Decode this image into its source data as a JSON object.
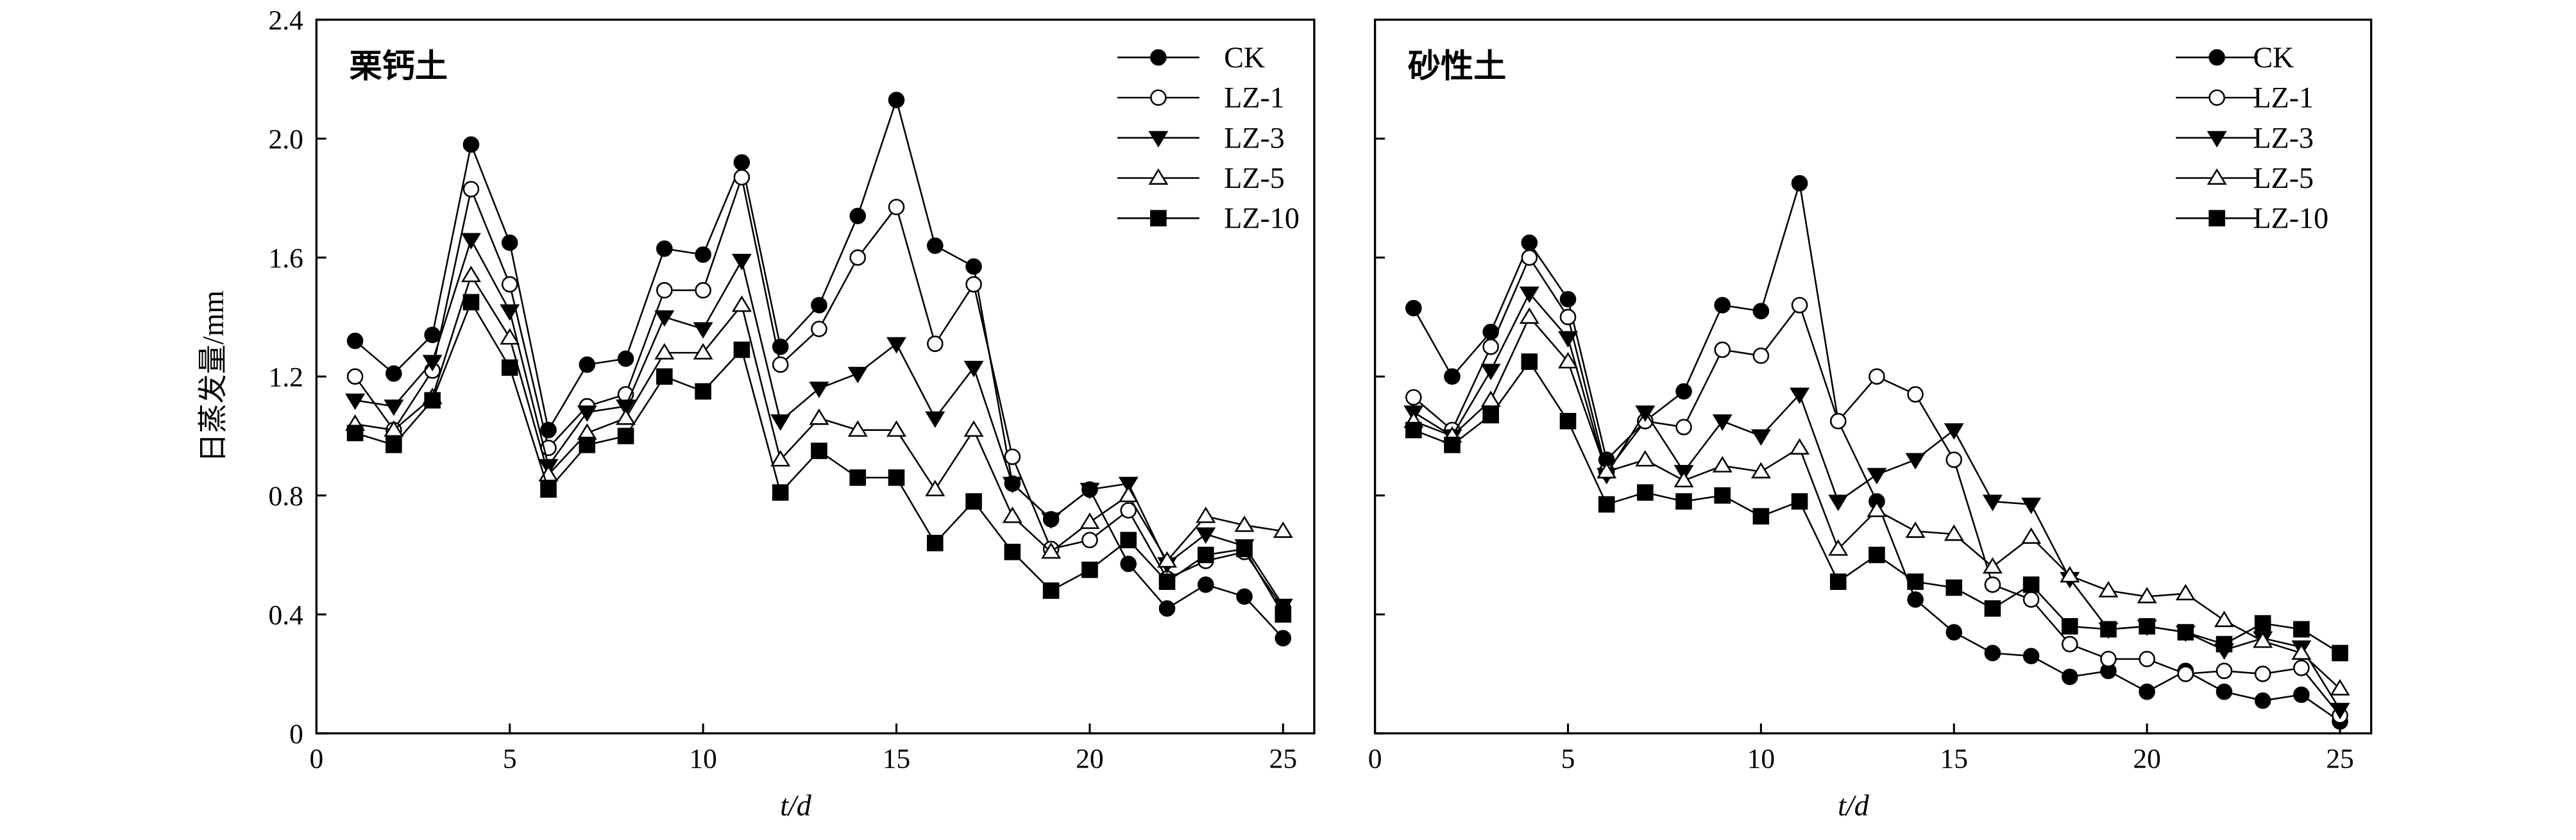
{
  "chart_data": [
    {
      "type": "line",
      "title": "栗钙土",
      "xlabel": "t/d",
      "ylabel": "日蒸发量/mm",
      "xlim": [
        0,
        26
      ],
      "ylim": [
        0,
        2.4
      ],
      "xticks": [
        0,
        5,
        10,
        15,
        20,
        25
      ],
      "yticks": [
        0,
        0.4,
        0.8,
        1.2,
        1.6,
        2.0,
        2.4
      ],
      "ytick_labels": [
        "0",
        "0.4",
        "0.8",
        "1.2",
        "1.6",
        "2.0",
        "2.4"
      ],
      "legend_position": "top-right",
      "x": [
        1,
        2,
        3,
        4,
        5,
        6,
        7,
        8,
        9,
        10,
        11,
        12,
        13,
        14,
        15,
        16,
        17,
        18,
        19,
        20,
        21,
        22,
        23,
        24,
        25
      ],
      "series": [
        {
          "name": "CK",
          "marker": "filled-circle",
          "values": [
            1.32,
            1.21,
            1.34,
            1.98,
            1.65,
            1.02,
            1.24,
            1.26,
            1.63,
            1.61,
            1.92,
            1.3,
            1.44,
            1.74,
            2.13,
            1.64,
            1.57,
            0.84,
            0.72,
            0.82,
            0.57,
            0.42,
            0.5,
            0.46,
            0.32
          ]
        },
        {
          "name": "LZ-1",
          "marker": "open-circle",
          "values": [
            1.2,
            1.02,
            1.22,
            1.83,
            1.51,
            0.96,
            1.1,
            1.14,
            1.49,
            1.49,
            1.87,
            1.24,
            1.36,
            1.6,
            1.77,
            1.31,
            1.51,
            0.93,
            0.62,
            0.65,
            0.75,
            0.52,
            0.58,
            0.61,
            0.42
          ]
        },
        {
          "name": "LZ-3",
          "marker": "filled-triangle-down",
          "values": [
            1.12,
            1.1,
            1.25,
            1.66,
            1.42,
            0.9,
            1.08,
            1.1,
            1.4,
            1.36,
            1.59,
            1.05,
            1.16,
            1.21,
            1.31,
            1.06,
            1.23,
            0.84,
            0.72,
            0.82,
            0.84,
            0.57,
            0.67,
            0.63,
            0.43
          ]
        },
        {
          "name": "LZ-5",
          "marker": "open-triangle-up",
          "values": [
            1.04,
            1.02,
            1.13,
            1.54,
            1.33,
            0.87,
            1.01,
            1.06,
            1.28,
            1.28,
            1.44,
            0.92,
            1.06,
            1.02,
            1.02,
            0.82,
            1.02,
            0.73,
            0.61,
            0.71,
            0.8,
            0.58,
            0.73,
            0.7,
            0.68
          ]
        },
        {
          "name": "LZ-10",
          "marker": "filled-square",
          "values": [
            1.01,
            0.97,
            1.12,
            1.45,
            1.23,
            0.82,
            0.97,
            1.0,
            1.2,
            1.15,
            1.29,
            0.81,
            0.95,
            0.86,
            0.86,
            0.64,
            0.78,
            0.61,
            0.48,
            0.55,
            0.65,
            0.51,
            0.6,
            0.62,
            0.4
          ]
        }
      ]
    },
    {
      "type": "line",
      "title": "砂性土",
      "xlabel": "t/d",
      "ylabel": "",
      "xlim": [
        0,
        26
      ],
      "ylim": [
        0,
        2.4
      ],
      "xticks": [
        0,
        5,
        10,
        15,
        20,
        25
      ],
      "yticks": [
        0,
        0.4,
        0.8,
        1.2,
        1.6,
        2.0,
        2.4
      ],
      "legend_position": "top-right",
      "x": [
        1,
        2,
        3,
        4,
        5,
        6,
        7,
        8,
        9,
        10,
        11,
        12,
        13,
        14,
        15,
        16,
        17,
        18,
        19,
        20,
        21,
        22,
        23,
        24,
        25
      ],
      "series": [
        {
          "name": "CK",
          "marker": "filled-circle",
          "values": [
            1.43,
            1.2,
            1.35,
            1.65,
            1.46,
            0.92,
            1.05,
            1.15,
            1.44,
            1.42,
            1.85,
            1.05,
            0.78,
            0.45,
            0.34,
            0.27,
            0.26,
            0.19,
            0.21,
            0.14,
            0.21,
            0.14,
            0.11,
            0.13,
            0.04
          ]
        },
        {
          "name": "LZ-1",
          "marker": "open-circle",
          "values": [
            1.13,
            1.02,
            1.3,
            1.6,
            1.4,
            0.88,
            1.05,
            1.03,
            1.29,
            1.27,
            1.44,
            1.05,
            1.2,
            1.14,
            0.92,
            0.5,
            0.45,
            0.3,
            0.25,
            0.25,
            0.2,
            0.21,
            0.2,
            0.22,
            0.06
          ]
        },
        {
          "name": "LZ-3",
          "marker": "filled-triangle-down",
          "values": [
            1.08,
            1.0,
            1.22,
            1.48,
            1.33,
            0.87,
            1.08,
            0.88,
            1.05,
            1.0,
            1.14,
            0.78,
            0.87,
            0.92,
            1.02,
            0.78,
            0.77,
            0.52,
            0.35,
            0.36,
            0.34,
            0.28,
            0.32,
            0.29,
            0.08
          ]
        },
        {
          "name": "LZ-5",
          "marker": "open-triangle-up",
          "values": [
            1.05,
            1.0,
            1.12,
            1.4,
            1.25,
            0.88,
            0.92,
            0.85,
            0.9,
            0.88,
            0.96,
            0.62,
            0.75,
            0.68,
            0.67,
            0.56,
            0.66,
            0.53,
            0.48,
            0.46,
            0.47,
            0.38,
            0.31,
            0.27,
            0.15
          ]
        },
        {
          "name": "LZ-10",
          "marker": "filled-square",
          "values": [
            1.02,
            0.97,
            1.07,
            1.25,
            1.05,
            0.77,
            0.81,
            0.78,
            0.8,
            0.73,
            0.78,
            0.51,
            0.6,
            0.51,
            0.49,
            0.42,
            0.5,
            0.36,
            0.35,
            0.36,
            0.34,
            0.3,
            0.37,
            0.35,
            0.27
          ]
        }
      ]
    }
  ]
}
